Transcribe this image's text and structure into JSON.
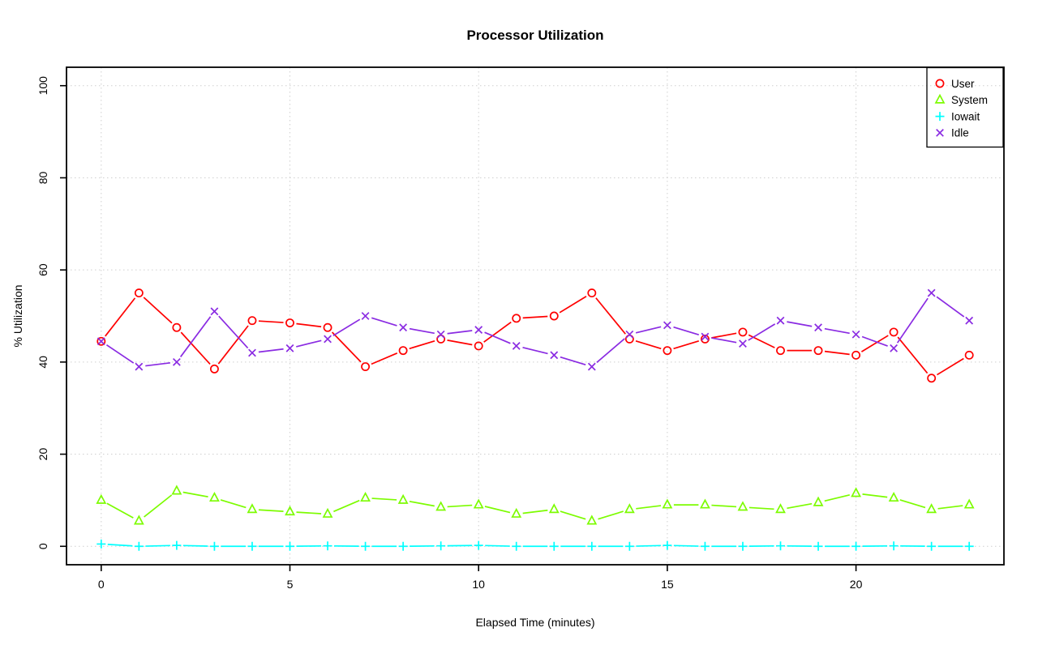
{
  "chart_data": {
    "type": "line",
    "title": "Processor Utilization",
    "xlabel": "Elapsed Time (minutes)",
    "ylabel": "% Utilization",
    "x": [
      0,
      1,
      2,
      3,
      4,
      5,
      6,
      7,
      8,
      9,
      10,
      11,
      12,
      13,
      14,
      15,
      16,
      17,
      18,
      19,
      20,
      21,
      22,
      23
    ],
    "series": [
      {
        "name": "User",
        "marker": "circle",
        "color": "#FF0000",
        "values": [
          44.5,
          55,
          47.5,
          38.5,
          49,
          48.5,
          47.5,
          39,
          42.5,
          45,
          43.5,
          49.5,
          50,
          55,
          45,
          42.5,
          45,
          46.5,
          42.5,
          42.5,
          41.5,
          46.5,
          36.5,
          41.5
        ]
      },
      {
        "name": "System",
        "marker": "triangle",
        "color": "#7CFC00",
        "values": [
          10,
          5.5,
          12,
          10.5,
          8,
          7.5,
          7,
          10.5,
          10,
          8.5,
          9,
          7,
          8,
          5.5,
          8,
          9,
          9,
          8.5,
          8,
          9.5,
          11.5,
          10.5,
          8,
          9
        ]
      },
      {
        "name": "Iowait",
        "marker": "plus",
        "color": "#00FFFF",
        "values": [
          0.5,
          0,
          0.2,
          0,
          0,
          0,
          0.1,
          0,
          0,
          0.1,
          0.2,
          0,
          0,
          0,
          0,
          0.2,
          0,
          0,
          0.1,
          0,
          0,
          0.1,
          0,
          0
        ]
      },
      {
        "name": "Idle",
        "marker": "x",
        "color": "#8A2BE2",
        "values": [
          44.5,
          39,
          40,
          51,
          42,
          43,
          45,
          50,
          47.5,
          46,
          47,
          43.5,
          41.5,
          39,
          46,
          48,
          45.5,
          44,
          49,
          47.5,
          46,
          43,
          55,
          49
        ]
      }
    ],
    "xticks": [
      0,
      5,
      10,
      15,
      20
    ],
    "yticks": [
      0,
      20,
      40,
      60,
      80,
      100
    ],
    "xlim": [
      -0.92,
      23.92
    ],
    "ylim": [
      -4,
      104
    ],
    "grid": true,
    "grid_color": "#CFCFCF",
    "axis_color": "#000000",
    "legend_position": "top-right",
    "line_style": "points-and-segments"
  }
}
